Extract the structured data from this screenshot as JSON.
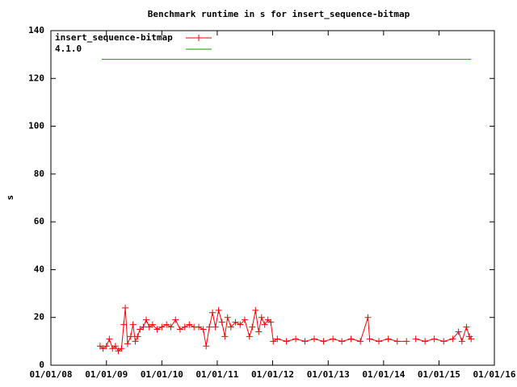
{
  "chart_data": {
    "type": "line",
    "title": "Benchmark runtime in s for insert_sequence-bitmap",
    "y_label": "s",
    "xlim": [
      "01/01/08",
      "01/01/16"
    ],
    "xticks": [
      "01/01/08",
      "01/01/09",
      "01/01/10",
      "01/01/11",
      "01/01/12",
      "01/01/13",
      "01/01/14",
      "01/01/15",
      "01/01/16"
    ],
    "ylim": [
      0,
      140
    ],
    "yticks": [
      0,
      20,
      40,
      60,
      80,
      100,
      120,
      140
    ],
    "legend": "top-left",
    "series": [
      {
        "name": "insert_sequence-bitmap",
        "color": "#ff0000",
        "marker": "plus",
        "x": [
          "11/20/08",
          "12/10/08",
          "01/01/09",
          "01/20/09",
          "02/10/09",
          "03/01/09",
          "03/20/09",
          "04/10/09",
          "04/25/09",
          "05/05/09",
          "05/20/09",
          "06/10/09",
          "06/25/09",
          "07/10/09",
          "07/25/09",
          "08/10/09",
          "09/01/09",
          "09/20/09",
          "10/10/09",
          "11/01/09",
          "12/01/09",
          "01/01/10",
          "02/01/10",
          "03/01/10",
          "04/01/10",
          "05/01/10",
          "06/01/10",
          "07/01/10",
          "08/01/10",
          "09/01/10",
          "10/01/10",
          "10/20/10",
          "11/10/10",
          "12/01/10",
          "12/20/10",
          "01/10/11",
          "02/01/11",
          "02/20/11",
          "03/10/11",
          "04/01/11",
          "05/01/11",
          "06/01/11",
          "07/01/11",
          "08/01/11",
          "08/20/11",
          "09/10/11",
          "10/01/11",
          "10/20/11",
          "11/10/11",
          "12/01/11",
          "12/20/11",
          "01/05/12",
          "02/01/12",
          "04/01/12",
          "06/01/12",
          "08/01/12",
          "10/01/12",
          "12/01/12",
          "02/01/13",
          "04/01/13",
          "06/01/13",
          "08/01/13",
          "09/20/13",
          "10/01/13",
          "12/01/13",
          "02/01/14",
          "04/01/14",
          "06/01/14",
          "07/01/14",
          "08/01/14",
          "10/01/14",
          "12/01/14",
          "02/01/15",
          "04/01/15",
          "05/10/15",
          "06/01/15",
          "07/01/15",
          "07/20/15",
          "08/01/15"
        ],
        "values": [
          8,
          7,
          8,
          11,
          7,
          8,
          6,
          7,
          17,
          24,
          9,
          12,
          17,
          10,
          12,
          15,
          16,
          19,
          16,
          17,
          15,
          16,
          17,
          16,
          19,
          15,
          16,
          17,
          16,
          16,
          15,
          8,
          16,
          22,
          16,
          23,
          18,
          12,
          20,
          16,
          18,
          17,
          19,
          12,
          16,
          23,
          14,
          20,
          17,
          19,
          18,
          10,
          11,
          10,
          11,
          10,
          11,
          10,
          11,
          10,
          11,
          10,
          20,
          11,
          10,
          11,
          10,
          10,
          null,
          11,
          10,
          11,
          10,
          11,
          14,
          10,
          16,
          12,
          11
        ]
      },
      {
        "name": "4.1.0",
        "color": "#00a000",
        "marker": "none",
        "x": [
          "12/01/08",
          "08/01/15"
        ],
        "values": [
          128,
          128
        ]
      }
    ]
  }
}
